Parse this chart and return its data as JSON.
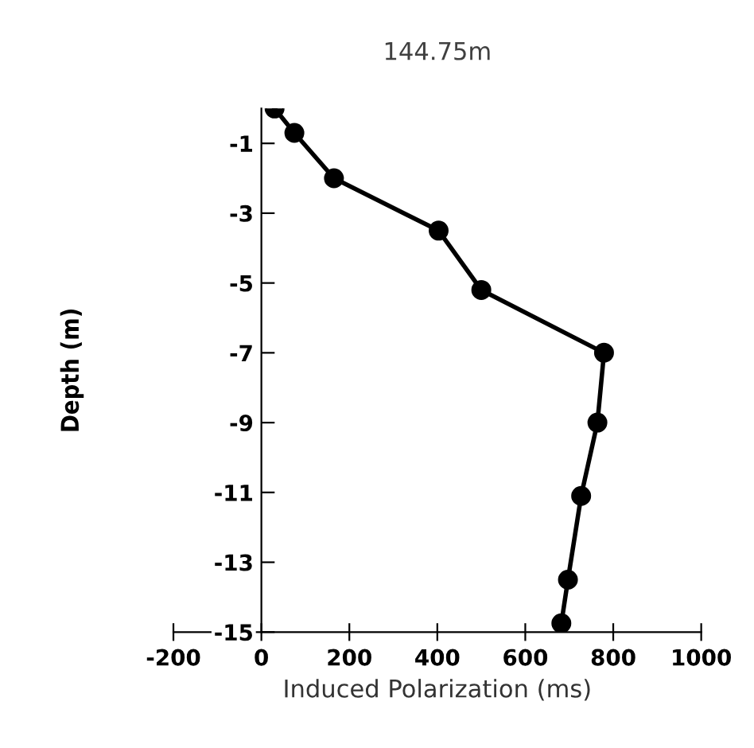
{
  "chart_data": {
    "type": "line",
    "title": "144.75m",
    "xlabel": "Induced Polarization (ms)",
    "ylabel": "Depth (m)",
    "x": [
      30,
      75,
      165,
      403,
      500,
      779,
      764,
      727,
      697,
      682
    ],
    "series": [
      {
        "color": "#000000",
        "values": [
          0,
          -0.7,
          -2,
          -3.5,
          -5.2,
          -7,
          -9,
          -11.1,
          -13.5,
          -14.75
        ]
      }
    ],
    "xlim": [
      -200,
      1000
    ],
    "xticks": [
      -200,
      0,
      200,
      400,
      600,
      800,
      1000
    ],
    "ylim": [
      -15,
      0
    ],
    "yticks": [
      -1,
      -3,
      -5,
      -7,
      -9,
      -11,
      -13,
      -15
    ],
    "marker": "circle",
    "line_style": "solid",
    "grid": false,
    "legend": false
  }
}
